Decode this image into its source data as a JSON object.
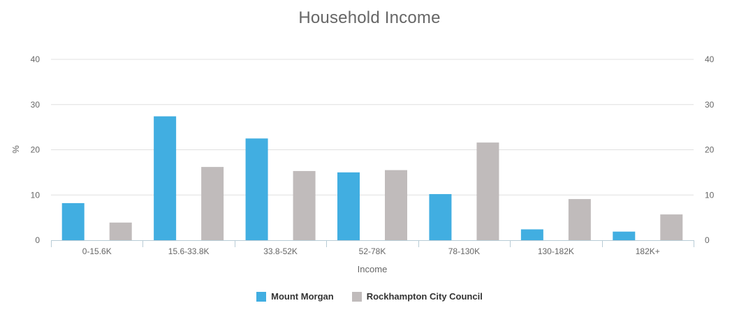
{
  "chart_data": {
    "type": "bar",
    "title": "Household Income",
    "xlabel": "Income",
    "ylabel": "%",
    "ylim": [
      0,
      40
    ],
    "yticks": [
      0,
      10,
      20,
      30,
      40
    ],
    "categories": [
      "0-15.6K",
      "15.6-33.8K",
      "33.8-52K",
      "52-78K",
      "78-130K",
      "130-182K",
      "182K+"
    ],
    "series": [
      {
        "name": "Mount Morgan",
        "color": "#41aee1",
        "values": [
          8.2,
          27.4,
          22.5,
          15.0,
          10.2,
          2.4,
          1.9
        ]
      },
      {
        "name": "Rockhampton City Council",
        "color": "#c0bbbb",
        "values": [
          3.9,
          16.2,
          15.3,
          15.5,
          21.6,
          9.1,
          5.7
        ]
      }
    ],
    "legend_position": "bottom",
    "grid": true
  }
}
